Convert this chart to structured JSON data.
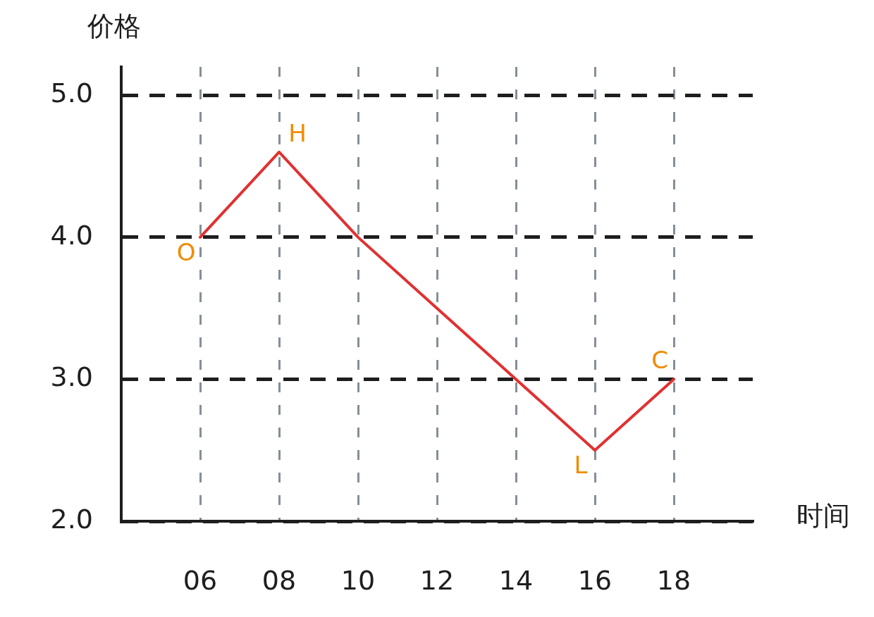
{
  "chart_data": {
    "type": "line",
    "xlabel": "时间",
    "ylabel": "价格",
    "x": [
      6,
      8,
      10,
      12,
      14,
      16,
      18
    ],
    "values": [
      4.0,
      4.6,
      4.0,
      3.5,
      3.0,
      2.5,
      3.0
    ],
    "color": "#e03131",
    "xlim": [
      4,
      20
    ],
    "xticks": [
      {
        "value": 6,
        "label": "06"
      },
      {
        "value": 8,
        "label": "08"
      },
      10,
      12,
      14,
      16,
      18
    ],
    "ylim": [
      2,
      5.2
    ],
    "yticks": [
      {
        "value": 2,
        "label": "2.0"
      },
      {
        "value": 3,
        "label": "3.0"
      },
      {
        "value": 4,
        "label": "4.0"
      },
      {
        "value": 5,
        "label": "5.0"
      }
    ],
    "grid": true,
    "legend": false,
    "marker": "none",
    "line_style": "solid",
    "annotations": [
      {
        "text": "O",
        "x": 6,
        "y": 4.0
      },
      {
        "text": "H",
        "x": 8,
        "y": 4.6
      },
      {
        "text": "L",
        "x": 16,
        "y": 2.5
      },
      {
        "text": "C",
        "x": 18,
        "y": 3.0
      }
    ]
  }
}
